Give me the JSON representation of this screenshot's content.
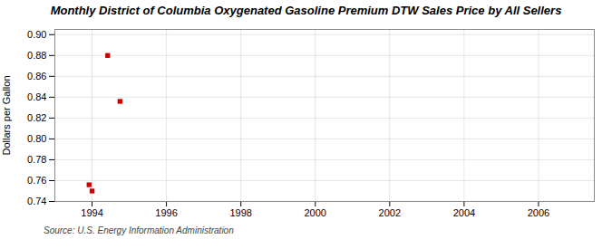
{
  "chart_data": {
    "type": "scatter",
    "title": "Monthly District of Columbia Oxygenated Gasoline Premium DTW Sales Price by All Sellers",
    "ylabel": "Dollars per Gallon",
    "source": "Source: U.S. Energy Information Administration",
    "x": [
      1993.92,
      1994.0,
      1994.42,
      1994.75
    ],
    "values": [
      0.756,
      0.75,
      0.88,
      0.836
    ],
    "color": "#cc0000",
    "marker": "square",
    "xlim": [
      1993.0,
      2007.5
    ],
    "ylim": [
      0.74,
      0.905
    ],
    "xticks": [
      1994,
      1996,
      1998,
      2000,
      2002,
      2004,
      2006
    ],
    "yticks": [
      0.74,
      0.76,
      0.78,
      {
        "value": 0.8,
        "label": "0.80"
      },
      0.82,
      0.84,
      0.86,
      0.88,
      {
        "value": 0.9,
        "label": "0.90"
      }
    ],
    "grid": true
  }
}
